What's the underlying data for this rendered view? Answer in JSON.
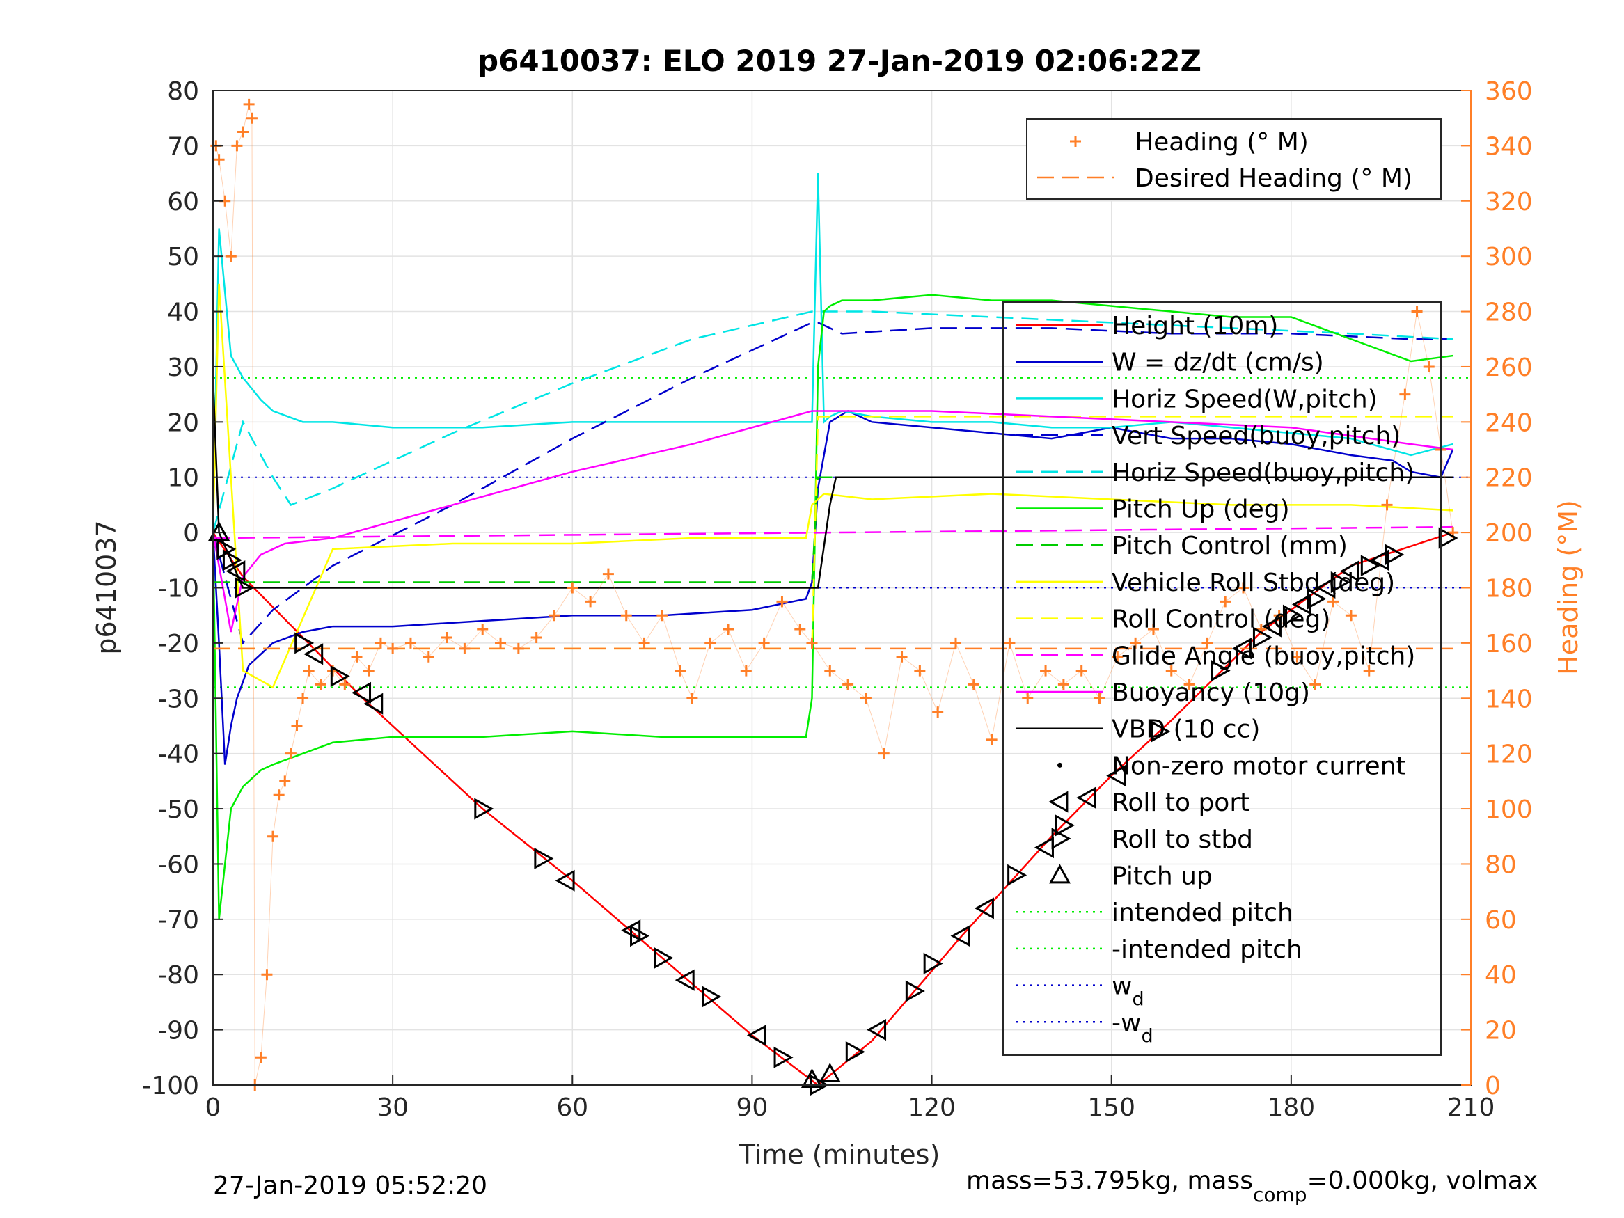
{
  "chart_data": {
    "type": "line",
    "title": "p6410037: ELO 2019 27-Jan-2019 02:06:22Z",
    "xlabel": "Time (minutes)",
    "ylabel": "p6410037",
    "y2label": "Heading (°M)",
    "xlim": [
      0,
      210
    ],
    "ylim": [
      -100,
      80
    ],
    "y2lim": [
      0,
      360
    ],
    "xticks": [
      0,
      30,
      60,
      90,
      120,
      150,
      180,
      210
    ],
    "yticks": [
      -100,
      -90,
      -80,
      -70,
      -60,
      -50,
      -40,
      -30,
      -20,
      -10,
      0,
      10,
      20,
      30,
      40,
      50,
      60,
      70,
      80
    ],
    "y2ticks": [
      0,
      20,
      40,
      60,
      80,
      100,
      120,
      140,
      160,
      180,
      200,
      220,
      240,
      260,
      280,
      300,
      320,
      340,
      360
    ],
    "grid": true,
    "footer_left": "27-Jan-2019 05:52:20",
    "footer_right": {
      "mass": "mass=53.795kg, mass",
      "comp_sub": "comp",
      "rest": "=0.000kg, volmax"
    },
    "legend_heading": {
      "placement": "top-right",
      "entries": [
        {
          "label": "Heading (° M)",
          "color": "#ff7f27",
          "style": "plus"
        },
        {
          "label": "Desired Heading (° M)",
          "color": "#ff7f27",
          "style": "dash"
        }
      ]
    },
    "legend_main": {
      "placement": "right",
      "entries": [
        {
          "label": "Height (10m)",
          "color": "#ff0000",
          "style": "solid"
        },
        {
          "label": "W = dz/dt (cm/s)",
          "color": "#0000cc",
          "style": "solid"
        },
        {
          "label": "Horiz Speed(W,pitch)",
          "color": "#00e5e5",
          "style": "solid"
        },
        {
          "label": "Vert Speed(buoy,pitch)",
          "color": "#0000cc",
          "style": "dash"
        },
        {
          "label": "Horiz Speed(buoy,pitch)",
          "color": "#00e5e5",
          "style": "dash"
        },
        {
          "label": "Pitch Up (deg)",
          "color": "#00ee00",
          "style": "solid"
        },
        {
          "label": "Pitch Control (mm)",
          "color": "#00cc00",
          "style": "dash"
        },
        {
          "label": "Vehicle Roll Stbd (deg)",
          "color": "#ffff00",
          "style": "solid"
        },
        {
          "label": "Roll Control (deg)",
          "color": "#ffff00",
          "style": "dash"
        },
        {
          "label": "Glide Angle (buoy,pitch)",
          "color": "#ff00ff",
          "style": "dash"
        },
        {
          "label": "Buoyancy (10g)",
          "color": "#ff00ff",
          "style": "solid"
        },
        {
          "label": "VBD (10 cc)",
          "color": "#000000",
          "style": "solid"
        },
        {
          "label": "Non-zero motor current",
          "color": "#000000",
          "style": "dot"
        },
        {
          "label": "Roll to port",
          "color": "#000000",
          "style": "tri-left"
        },
        {
          "label": "Roll to stbd",
          "color": "#000000",
          "style": "tri-right"
        },
        {
          "label": "Pitch up",
          "color": "#000000",
          "style": "tri-up"
        },
        {
          "label": "intended pitch",
          "color": "#00ee00",
          "style": "dotted"
        },
        {
          "label": "-intended pitch",
          "color": "#00ee00",
          "style": "dotted"
        },
        {
          "label": "w",
          "sub": "d",
          "color": "#0000cc",
          "style": "dotted"
        },
        {
          "label": "-w",
          "sub": "d",
          "color": "#0000cc",
          "style": "dotted"
        }
      ]
    },
    "reference_lines": [
      {
        "name": "intended pitch",
        "y": 28,
        "color": "#00ee00"
      },
      {
        "name": "-intended pitch",
        "y": -28,
        "color": "#00ee00"
      },
      {
        "name": "w_d",
        "y": 10,
        "color": "#0000cc"
      },
      {
        "name": "-w_d",
        "y": -10,
        "color": "#0000cc"
      }
    ],
    "series": [
      {
        "name": "Height (10m)",
        "color": "#ff0000",
        "style": "solid",
        "axis": "left",
        "x": [
          0,
          5,
          25,
          45,
          60,
          75,
          90,
          101,
          110,
          125,
          140,
          150,
          160,
          175,
          190,
          207
        ],
        "y": [
          0,
          -8,
          -30,
          -50,
          -63,
          -77,
          -91,
          -100,
          -92,
          -73,
          -55,
          -44,
          -34,
          -18,
          -6,
          0
        ]
      },
      {
        "name": "W = dz/dt (cm/s)",
        "color": "#0000cc",
        "style": "solid",
        "axis": "left",
        "x": [
          0,
          1,
          2,
          3,
          4,
          6,
          10,
          15,
          20,
          30,
          45,
          60,
          75,
          90,
          99,
          100,
          101,
          103,
          106,
          110,
          120,
          130,
          140,
          150,
          160,
          170,
          180,
          190,
          197,
          200,
          205,
          207
        ],
        "y": [
          0,
          -20,
          -42,
          -35,
          -30,
          -24,
          -20,
          -18,
          -17,
          -17,
          -16,
          -15,
          -15,
          -14,
          -12,
          -9,
          8,
          20,
          22,
          20,
          19,
          18,
          17,
          19,
          17,
          17,
          16,
          14,
          13,
          11,
          10,
          15
        ]
      },
      {
        "name": "Horiz Speed(W,pitch)",
        "color": "#00e5e5",
        "style": "solid",
        "axis": "left",
        "x": [
          0,
          1,
          3,
          5,
          8,
          10,
          15,
          20,
          30,
          45,
          60,
          75,
          90,
          98,
          100,
          101,
          102,
          103,
          105,
          110,
          120,
          130,
          140,
          150,
          160,
          170,
          180,
          190,
          200,
          207
        ],
        "y": [
          0,
          55,
          32,
          28,
          24,
          22,
          20,
          20,
          19,
          19,
          20,
          20,
          20,
          20,
          20,
          65,
          20,
          21,
          22,
          21,
          20,
          20,
          19,
          19,
          20,
          19,
          18,
          17,
          14,
          16
        ]
      },
      {
        "name": "Vert Speed(buoy,pitch)",
        "color": "#0000cc",
        "style": "dash",
        "axis": "left",
        "x": [
          0,
          5,
          10,
          20,
          40,
          60,
          80,
          100,
          101,
          105,
          120,
          140,
          160,
          180,
          200,
          207
        ],
        "y": [
          0,
          -20,
          -14,
          -6,
          5,
          17,
          28,
          38,
          38,
          36,
          37,
          37,
          36,
          36,
          35,
          35
        ]
      },
      {
        "name": "Horiz Speed(buoy,pitch)",
        "color": "#00e5e5",
        "style": "dash",
        "axis": "left",
        "x": [
          0,
          5,
          10,
          13,
          20,
          40,
          60,
          80,
          100,
          101,
          110,
          130,
          150,
          170,
          190,
          207
        ],
        "y": [
          0,
          20,
          10,
          5,
          8,
          18,
          27,
          35,
          40,
          40,
          40,
          39,
          38,
          37,
          36,
          35
        ]
      },
      {
        "name": "Pitch Up (deg)",
        "color": "#00ee00",
        "style": "solid",
        "axis": "left",
        "x": [
          0,
          1,
          2,
          3,
          5,
          8,
          10,
          15,
          20,
          30,
          45,
          60,
          75,
          90,
          99,
          100,
          101,
          102,
          103,
          105,
          110,
          120,
          130,
          140,
          150,
          160,
          170,
          180,
          190,
          200,
          207
        ],
        "y": [
          0,
          -70,
          -60,
          -50,
          -46,
          -43,
          -42,
          -40,
          -38,
          -37,
          -37,
          -36,
          -37,
          -37,
          -37,
          -30,
          30,
          40,
          41,
          42,
          42,
          43,
          42,
          42,
          41,
          40,
          39,
          39,
          35,
          31,
          32
        ]
      },
      {
        "name": "Pitch Control (mm)",
        "color": "#00cc00",
        "style": "dash",
        "axis": "left",
        "x": [
          0,
          5,
          100,
          101,
          207
        ],
        "y": [
          -9,
          -9,
          -9,
          10,
          10
        ]
      },
      {
        "name": "Vehicle Roll Stbd (deg)",
        "color": "#ffff00",
        "style": "solid",
        "axis": "left",
        "x": [
          0,
          1,
          3,
          5,
          10,
          20,
          40,
          60,
          80,
          99,
          100,
          102,
          110,
          130,
          150,
          170,
          190,
          207
        ],
        "y": [
          0,
          45,
          10,
          -25,
          -28,
          -3,
          -2,
          -2,
          -1,
          -1,
          5,
          7,
          6,
          7,
          6,
          5,
          5,
          4
        ]
      },
      {
        "name": "Roll Control (deg)",
        "color": "#ffff00",
        "style": "dash",
        "axis": "left",
        "x": [
          0,
          5,
          100,
          101,
          207
        ],
        "y": [
          -21,
          -21,
          -21,
          21,
          21
        ]
      },
      {
        "name": "Glide Angle (buoy,pitch)",
        "color": "#ff00ff",
        "style": "dash",
        "axis": "left",
        "x": [
          0,
          207
        ],
        "y": [
          -1,
          1
        ]
      },
      {
        "name": "Buoyancy (10g)",
        "color": "#ff00ff",
        "style": "solid",
        "axis": "left",
        "x": [
          0,
          3,
          5,
          8,
          12,
          20,
          40,
          60,
          80,
          100,
          101,
          120,
          140,
          160,
          180,
          200,
          207
        ],
        "y": [
          0,
          -18,
          -8,
          -4,
          -2,
          -1,
          5,
          11,
          16,
          22,
          22,
          22,
          21,
          20,
          19,
          16,
          15
        ]
      },
      {
        "name": "VBD (10 cc)",
        "color": "#000000",
        "style": "solid",
        "axis": "left",
        "x": [
          0,
          1,
          3,
          5,
          10,
          100,
          101,
          103,
          104,
          207
        ],
        "y": [
          28,
          0,
          -5,
          -10,
          -10,
          -10,
          -10,
          5,
          10,
          10
        ]
      },
      {
        "name": "Heading (° M)",
        "color": "#ff7f27",
        "style": "plus",
        "axis": "right",
        "x": [
          0.5,
          1,
          2,
          3,
          4,
          5,
          6,
          6.5,
          7,
          8,
          9,
          10,
          11,
          12,
          13,
          14,
          15,
          16,
          18,
          20,
          22,
          24,
          26,
          28,
          30,
          33,
          36,
          39,
          42,
          45,
          48,
          51,
          54,
          57,
          60,
          63,
          66,
          69,
          72,
          75,
          78,
          80,
          83,
          86,
          89,
          92,
          95,
          98,
          100,
          103,
          106,
          109,
          112,
          115,
          118,
          121,
          124,
          127,
          130,
          133,
          136,
          139,
          142,
          145,
          148,
          151,
          154,
          157,
          160,
          163,
          166,
          169,
          172,
          175,
          178,
          181,
          184,
          187,
          190,
          193,
          196,
          199,
          201,
          203,
          205,
          207
        ],
        "y": [
          340,
          335,
          320,
          300,
          340,
          345,
          355,
          350,
          0,
          10,
          40,
          90,
          105,
          110,
          120,
          130,
          140,
          150,
          145,
          150,
          145,
          155,
          150,
          160,
          158,
          160,
          155,
          162,
          158,
          165,
          160,
          158,
          162,
          170,
          180,
          175,
          185,
          170,
          160,
          170,
          150,
          140,
          160,
          165,
          150,
          160,
          175,
          165,
          160,
          150,
          145,
          140,
          120,
          155,
          150,
          135,
          160,
          145,
          125,
          160,
          140,
          150,
          145,
          150,
          140,
          155,
          160,
          165,
          150,
          145,
          160,
          175,
          180,
          165,
          170,
          155,
          145,
          175,
          170,
          150,
          210,
          250,
          280,
          260,
          230,
          200
        ]
      },
      {
        "name": "Desired Heading (° M)",
        "color": "#ff7f27",
        "style": "dash",
        "axis": "right",
        "x": [
          0,
          207
        ],
        "y": [
          158,
          158
        ]
      }
    ],
    "markers": [
      {
        "x": 1,
        "y": 0,
        "kind": "tri-up"
      },
      {
        "x": 2,
        "y": -3,
        "kind": "tri-right"
      },
      {
        "x": 3,
        "y": -5,
        "kind": "tri-right"
      },
      {
        "x": 4,
        "y": -7,
        "kind": "tri-left"
      },
      {
        "x": 5,
        "y": -10,
        "kind": "tri-right"
      },
      {
        "x": 15,
        "y": -20,
        "kind": "tri-right"
      },
      {
        "x": 17,
        "y": -22,
        "kind": "tri-left"
      },
      {
        "x": 21,
        "y": -26,
        "kind": "tri-right"
      },
      {
        "x": 25,
        "y": -29,
        "kind": "tri-left"
      },
      {
        "x": 27,
        "y": -31,
        "kind": "tri-left"
      },
      {
        "x": 45,
        "y": -50,
        "kind": "tri-right"
      },
      {
        "x": 55,
        "y": -59,
        "kind": "tri-right"
      },
      {
        "x": 59,
        "y": -63,
        "kind": "tri-left"
      },
      {
        "x": 70,
        "y": -72,
        "kind": "tri-left"
      },
      {
        "x": 71,
        "y": -73,
        "kind": "tri-right"
      },
      {
        "x": 75,
        "y": -77,
        "kind": "tri-right"
      },
      {
        "x": 79,
        "y": -81,
        "kind": "tri-left"
      },
      {
        "x": 83,
        "y": -84,
        "kind": "tri-right"
      },
      {
        "x": 91,
        "y": -91,
        "kind": "tri-left"
      },
      {
        "x": 95,
        "y": -95,
        "kind": "tri-right"
      },
      {
        "x": 100,
        "y": -99,
        "kind": "tri-up"
      },
      {
        "x": 101,
        "y": -100,
        "kind": "tri-right"
      },
      {
        "x": 103,
        "y": -98,
        "kind": "tri-up"
      },
      {
        "x": 107,
        "y": -94,
        "kind": "tri-right"
      },
      {
        "x": 111,
        "y": -90,
        "kind": "tri-left"
      },
      {
        "x": 117,
        "y": -83,
        "kind": "tri-right"
      },
      {
        "x": 120,
        "y": -78,
        "kind": "tri-right"
      },
      {
        "x": 125,
        "y": -73,
        "kind": "tri-left"
      },
      {
        "x": 129,
        "y": -68,
        "kind": "tri-left"
      },
      {
        "x": 134,
        "y": -62,
        "kind": "tri-right"
      },
      {
        "x": 139,
        "y": -57,
        "kind": "tri-left"
      },
      {
        "x": 142,
        "y": -53,
        "kind": "tri-right"
      },
      {
        "x": 146,
        "y": -48,
        "kind": "tri-left"
      },
      {
        "x": 151,
        "y": -44,
        "kind": "tri-left"
      },
      {
        "x": 158,
        "y": -36,
        "kind": "tri-right"
      },
      {
        "x": 168,
        "y": -25,
        "kind": "tri-right"
      },
      {
        "x": 172,
        "y": -21,
        "kind": "tri-left"
      },
      {
        "x": 175,
        "y": -19,
        "kind": "tri-right"
      },
      {
        "x": 177,
        "y": -17,
        "kind": "tri-left"
      },
      {
        "x": 180,
        "y": -15,
        "kind": "tri-right"
      },
      {
        "x": 182,
        "y": -13,
        "kind": "tri-left"
      },
      {
        "x": 184,
        "y": -12,
        "kind": "tri-right"
      },
      {
        "x": 186,
        "y": -10,
        "kind": "tri-left"
      },
      {
        "x": 188,
        "y": -9,
        "kind": "tri-right"
      },
      {
        "x": 190,
        "y": -7,
        "kind": "tri-left"
      },
      {
        "x": 193,
        "y": -6,
        "kind": "tri-right"
      },
      {
        "x": 195,
        "y": -5,
        "kind": "tri-left"
      },
      {
        "x": 197,
        "y": -4,
        "kind": "tri-right"
      },
      {
        "x": 206,
        "y": -1,
        "kind": "tri-right"
      }
    ]
  }
}
